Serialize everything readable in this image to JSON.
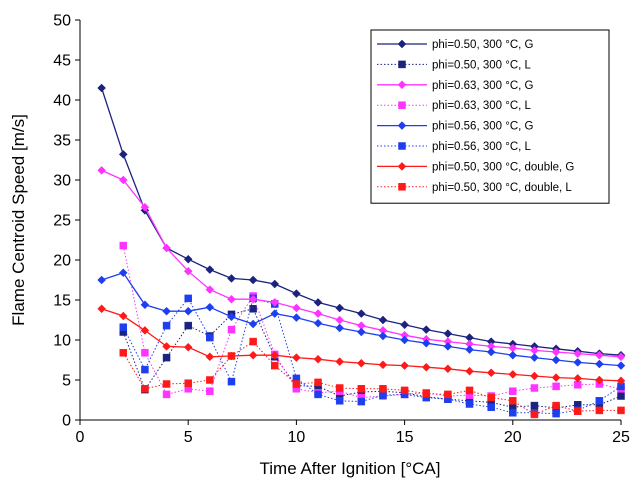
{
  "chart_data": {
    "type": "line",
    "title": "",
    "xlabel": "Time After Ignition [°CA]",
    "ylabel": "Flame Centroid Speed [m/s]",
    "xlim": [
      0,
      25
    ],
    "ylim": [
      0,
      50
    ],
    "xticks": [
      "0",
      "5",
      "10",
      "15",
      "20",
      "25"
    ],
    "yticks": [
      "0",
      "5",
      "10",
      "15",
      "20",
      "25",
      "30",
      "35",
      "40",
      "45",
      "50"
    ],
    "grid": false,
    "legend_position": "top-right",
    "series": [
      {
        "name": "phi=0.50, 300 °C, G",
        "color": "#1a237e",
        "marker": "diamond",
        "line": "solid",
        "x": [
          1,
          2,
          3,
          4,
          5,
          6,
          7,
          8,
          9,
          10,
          11,
          12,
          13,
          14,
          15,
          16,
          17,
          18,
          19,
          20,
          21,
          22,
          23,
          24,
          25
        ],
        "y": [
          41.5,
          33.2,
          26.2,
          21.5,
          20.1,
          18.8,
          17.7,
          17.5,
          17.0,
          15.8,
          14.7,
          14.0,
          13.3,
          12.5,
          11.9,
          11.3,
          10.8,
          10.3,
          9.8,
          9.5,
          9.2,
          8.9,
          8.6,
          8.3,
          8.1
        ]
      },
      {
        "name": "phi=0.50, 300 °C, L",
        "color": "#1a237e",
        "marker": "square",
        "line": "dotted",
        "x": [
          2,
          3,
          4,
          5,
          6,
          7,
          8,
          9,
          10,
          11,
          12,
          13,
          14,
          15,
          16,
          17,
          18,
          19,
          20,
          21,
          22,
          23,
          24,
          25
        ],
        "y": [
          11.0,
          3.8,
          7.8,
          11.8,
          10.5,
          13.2,
          13.9,
          7.9,
          4.3,
          4.2,
          3.0,
          3.5,
          3.6,
          3.4,
          2.9,
          2.6,
          2.4,
          2.2,
          1.6,
          1.8,
          1.5,
          1.9,
          1.9,
          3.0
        ]
      },
      {
        "name": "phi=0.63, 300 °C, G",
        "color": "#ff33ff",
        "marker": "diamond",
        "line": "solid",
        "x": [
          1,
          2,
          3,
          4,
          5,
          6,
          7,
          8,
          9,
          10,
          11,
          12,
          13,
          14,
          15,
          16,
          17,
          18,
          19,
          20,
          21,
          22,
          23,
          24,
          25
        ],
        "y": [
          31.2,
          30.0,
          26.6,
          21.5,
          18.6,
          16.3,
          15.1,
          15.1,
          14.7,
          14.0,
          13.3,
          12.5,
          11.8,
          11.2,
          10.6,
          10.1,
          9.8,
          9.5,
          9.2,
          9.0,
          8.7,
          8.5,
          8.3,
          8.1,
          7.9
        ]
      },
      {
        "name": "phi=0.63, 300 °C, L",
        "color": "#ff33ff",
        "marker": "square",
        "line": "dotted",
        "x": [
          2,
          3,
          4,
          5,
          6,
          7,
          8,
          9,
          10,
          11,
          12,
          13,
          14,
          15,
          16,
          17,
          18,
          19,
          20,
          21,
          22,
          23,
          24,
          25
        ],
        "y": [
          21.8,
          8.4,
          3.2,
          3.9,
          3.6,
          11.3,
          15.5,
          8.2,
          3.9,
          3.4,
          3.6,
          2.8,
          3.0,
          3.2,
          3.4,
          3.0,
          3.1,
          3.0,
          3.6,
          4.0,
          4.2,
          4.4,
          4.5,
          3.9
        ]
      },
      {
        "name": "phi=0.56, 300 °C, G",
        "color": "#1e3ff0",
        "marker": "diamond",
        "line": "solid",
        "x": [
          1,
          2,
          3,
          4,
          5,
          6,
          7,
          8,
          9,
          10,
          11,
          12,
          13,
          14,
          15,
          16,
          17,
          18,
          19,
          20,
          21,
          22,
          23,
          24,
          25
        ],
        "y": [
          17.5,
          18.4,
          14.4,
          13.6,
          13.6,
          14.1,
          12.9,
          12.0,
          13.3,
          12.8,
          12.1,
          11.5,
          11.0,
          10.5,
          10.0,
          9.6,
          9.2,
          8.8,
          8.5,
          8.1,
          7.8,
          7.5,
          7.2,
          7.0,
          6.8
        ]
      },
      {
        "name": "phi=0.56, 300 °C, L",
        "color": "#1e3ff0",
        "marker": "square",
        "line": "dotted",
        "x": [
          2,
          3,
          4,
          5,
          6,
          7,
          8,
          9,
          10,
          11,
          12,
          13,
          14,
          15,
          16,
          17,
          18,
          19,
          20,
          21,
          22,
          23,
          24,
          25
        ],
        "y": [
          11.6,
          6.3,
          11.8,
          15.2,
          10.3,
          4.8,
          15.2,
          14.5,
          5.2,
          3.2,
          2.4,
          2.3,
          3.1,
          3.2,
          2.8,
          2.6,
          2.0,
          1.6,
          0.9,
          0.9,
          0.8,
          1.2,
          2.4,
          4.2
        ]
      },
      {
        "name": "phi=0.50, 300 °C, double, G",
        "color": "#ff1a1a",
        "marker": "diamond",
        "line": "solid",
        "x": [
          1,
          2,
          3,
          4,
          5,
          6,
          7,
          8,
          9,
          10,
          11,
          12,
          13,
          14,
          15,
          16,
          17,
          18,
          19,
          20,
          21,
          22,
          23,
          24,
          25
        ],
        "y": [
          13.9,
          13.0,
          11.2,
          9.2,
          9.1,
          7.9,
          8.0,
          8.1,
          8.1,
          7.8,
          7.6,
          7.3,
          7.1,
          6.9,
          6.8,
          6.6,
          6.4,
          6.1,
          5.9,
          5.7,
          5.5,
          5.3,
          5.2,
          5.0,
          4.9
        ]
      },
      {
        "name": "phi=0.50, 300 °C, double, L",
        "color": "#ff1a1a",
        "marker": "square",
        "line": "dotted",
        "x": [
          2,
          3,
          4,
          5,
          6,
          7,
          8,
          9,
          10,
          11,
          12,
          13,
          14,
          15,
          16,
          17,
          18,
          19,
          20,
          21,
          22,
          23,
          24,
          25
        ],
        "y": [
          8.4,
          3.9,
          4.5,
          4.6,
          5.0,
          8.0,
          9.8,
          6.8,
          4.5,
          4.7,
          4.0,
          3.9,
          3.9,
          3.7,
          3.3,
          3.2,
          3.7,
          2.8,
          2.4,
          0.7,
          1.8,
          1.1,
          1.2,
          1.2
        ]
      }
    ]
  }
}
